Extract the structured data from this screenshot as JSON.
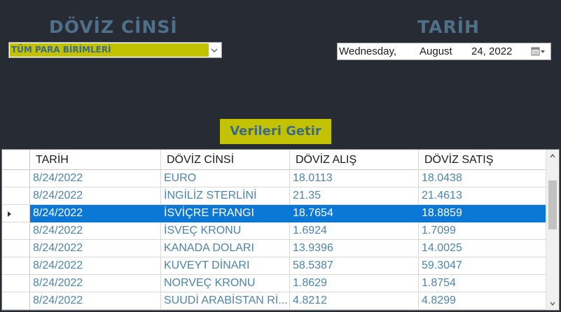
{
  "currency": {
    "heading": "DÖVİZ CİNSİ",
    "selected": "TÜM PARA BİRİMLERİ"
  },
  "date": {
    "heading": "TARİH",
    "day_of_week": "Wednesday,",
    "month": "August",
    "day_year": "24, 2022"
  },
  "fetch_button": {
    "label": "Verileri Getir"
  },
  "grid": {
    "columns": [
      "TARİH",
      "DÖVİZ CİNSİ",
      "DÖVİZ ALIŞ",
      "DÖVİZ SATIŞ"
    ],
    "selected_row": 2,
    "rows": [
      [
        "8/24/2022",
        "EURO",
        "18.0113",
        "18.0438"
      ],
      [
        "8/24/2022",
        "İNGİLİZ STERLİNİ",
        "21.35",
        "21.4613"
      ],
      [
        "8/24/2022",
        "İSVİÇRE FRANGI",
        "18.7654",
        "18.8859"
      ],
      [
        "8/24/2022",
        "İSVEÇ KRONU",
        "1.6924",
        "1.7099"
      ],
      [
        "8/24/2022",
        "KANADA DOLARI",
        "13.9396",
        "14.0025"
      ],
      [
        "8/24/2022",
        "KUVEYT DİNARI",
        "58.5387",
        "59.3047"
      ],
      [
        "8/24/2022",
        "NORVEÇ KRONU",
        "1.8629",
        "1.8754"
      ],
      [
        "8/24/2022",
        "SUUDİ ARABİSTAN Rİ...",
        "4.8212",
        "4.8299"
      ]
    ]
  },
  "icons": {
    "combo_arrow": "chevron-down-icon",
    "date_button": "calendar-dropdown-icon",
    "scroll_up": "scroll-up-arrow-icon",
    "scroll_down": "scroll-down-arrow-icon",
    "row_marker": "current-row-indicator-icon"
  },
  "colors": {
    "background": "#272b33",
    "accent_yellow": "#c2c200",
    "heading_blue": "#4e7088",
    "cell_text_blue": "#4d84a8",
    "selection_blue": "#0a78d4"
  }
}
